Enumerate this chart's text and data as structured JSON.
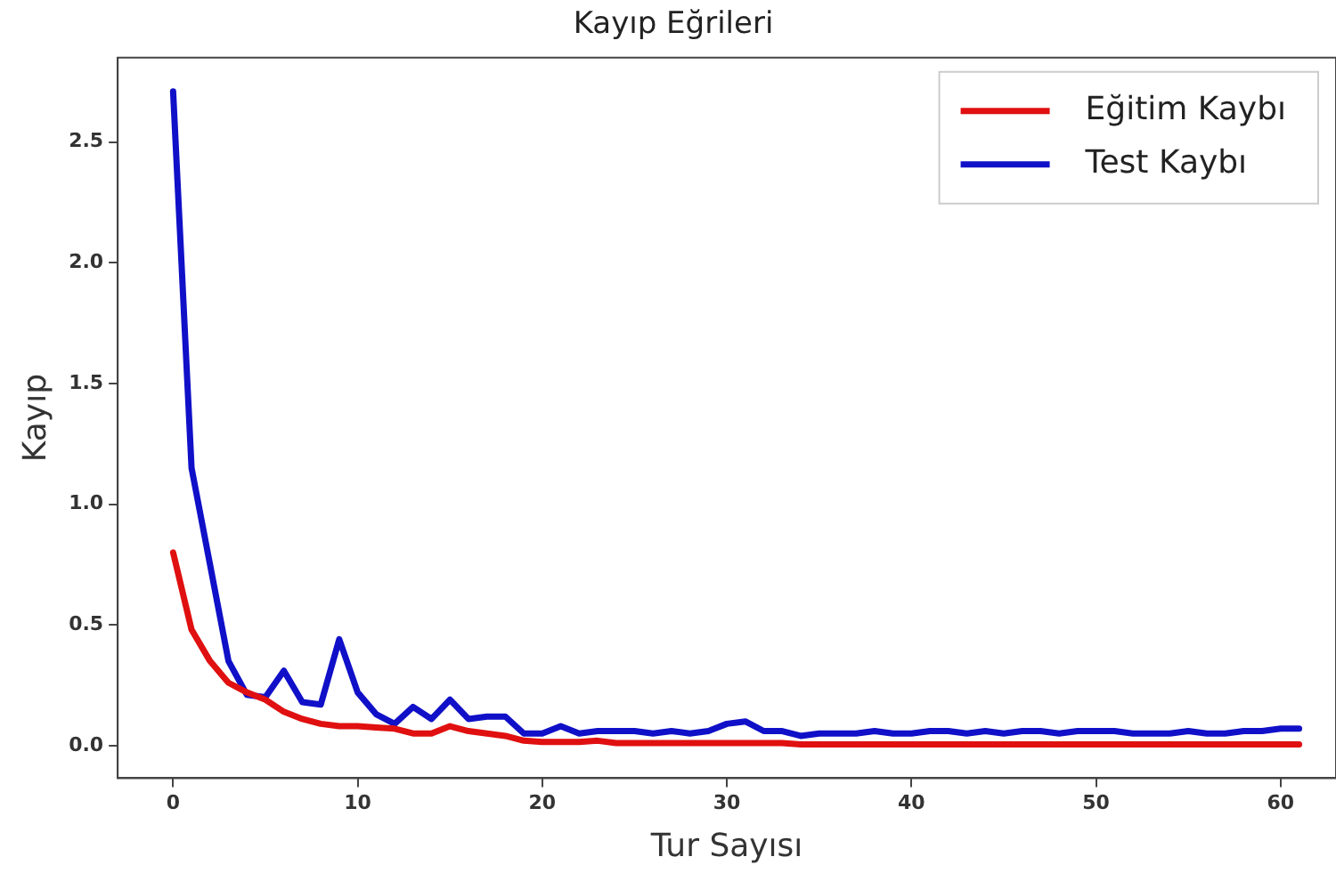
{
  "chart_data": {
    "type": "line",
    "title": "Kayıp Eğrileri",
    "xlabel": "Tur Sayısı",
    "ylabel": "Kayıp",
    "x": [
      0,
      1,
      2,
      3,
      4,
      5,
      6,
      7,
      8,
      9,
      10,
      11,
      12,
      13,
      14,
      15,
      16,
      17,
      18,
      19,
      20,
      21,
      22,
      23,
      24,
      25,
      26,
      27,
      28,
      29,
      30,
      31,
      32,
      33,
      34,
      35,
      36,
      37,
      38,
      39,
      40,
      41,
      42,
      43,
      44,
      45,
      46,
      47,
      48,
      49,
      50,
      51,
      52,
      53,
      54,
      55,
      56,
      57,
      58,
      59,
      60,
      61
    ],
    "series": [
      {
        "name": "Eğitim Kaybı",
        "color": "#e01010",
        "values": [
          0.8,
          0.48,
          0.35,
          0.26,
          0.22,
          0.19,
          0.14,
          0.11,
          0.09,
          0.08,
          0.08,
          0.075,
          0.07,
          0.05,
          0.05,
          0.08,
          0.06,
          0.05,
          0.04,
          0.02,
          0.015,
          0.015,
          0.015,
          0.02,
          0.01,
          0.01,
          0.01,
          0.01,
          0.01,
          0.01,
          0.01,
          0.01,
          0.01,
          0.01,
          0.005,
          0.005,
          0.005,
          0.005,
          0.005,
          0.005,
          0.005,
          0.005,
          0.005,
          0.005,
          0.005,
          0.005,
          0.005,
          0.005,
          0.005,
          0.005,
          0.005,
          0.005,
          0.005,
          0.005,
          0.005,
          0.005,
          0.005,
          0.005,
          0.005,
          0.005,
          0.005,
          0.005
        ]
      },
      {
        "name": "Test Kaybı",
        "color": "#1010c8",
        "values": [
          2.71,
          1.15,
          0.75,
          0.35,
          0.21,
          0.2,
          0.31,
          0.18,
          0.17,
          0.44,
          0.22,
          0.13,
          0.09,
          0.16,
          0.11,
          0.19,
          0.11,
          0.12,
          0.12,
          0.05,
          0.05,
          0.08,
          0.05,
          0.06,
          0.06,
          0.06,
          0.05,
          0.06,
          0.05,
          0.06,
          0.09,
          0.1,
          0.06,
          0.06,
          0.04,
          0.05,
          0.05,
          0.05,
          0.06,
          0.05,
          0.05,
          0.06,
          0.06,
          0.05,
          0.06,
          0.05,
          0.06,
          0.06,
          0.05,
          0.06,
          0.06,
          0.06,
          0.05,
          0.05,
          0.05,
          0.06,
          0.05,
          0.05,
          0.06,
          0.06,
          0.07,
          0.07
        ]
      }
    ],
    "xlim": [
      -3,
      63
    ],
    "xticks": [
      0,
      10,
      20,
      30,
      40,
      50,
      60
    ],
    "ylim": [
      -0.135,
      2.85
    ],
    "yticks": [
      {
        "value": 0,
        "label": "0.0"
      },
      {
        "value": 0.5,
        "label": "0.5"
      },
      {
        "value": 1,
        "label": "1.0"
      },
      {
        "value": 1.5,
        "label": "1.5"
      },
      {
        "value": 2,
        "label": "2.0"
      },
      {
        "value": 2.5,
        "label": "2.5"
      }
    ],
    "legend": "top right",
    "grid": false,
    "marker": "none",
    "line_style": "solid"
  }
}
